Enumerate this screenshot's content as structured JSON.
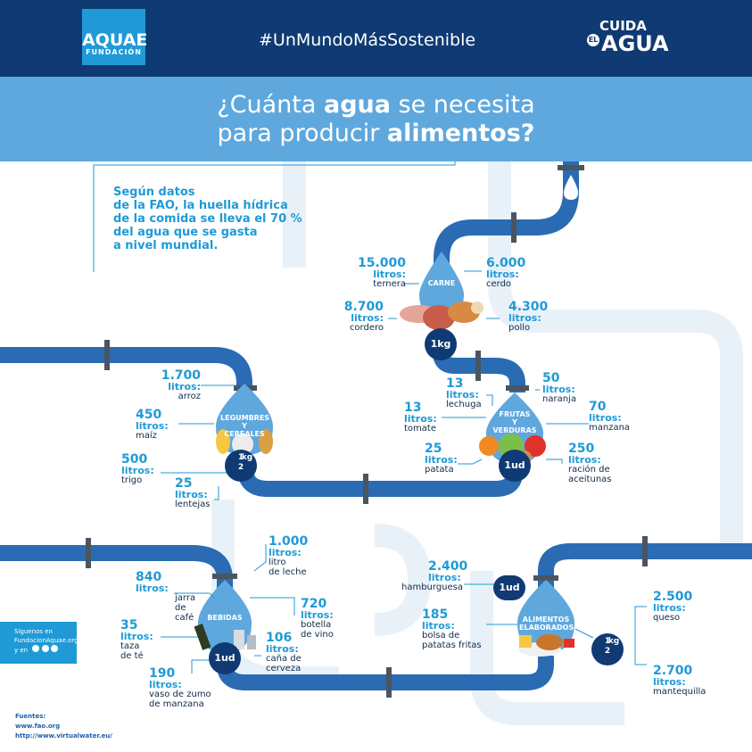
{
  "header": {
    "logo_name": "AQUAE",
    "logo_sub": "FUNDACIÓN",
    "hashtag": "#UnMundoMásSostenible",
    "campaign_l1": "CUIDA",
    "campaign_el": "EL",
    "campaign_l2": "AGUA"
  },
  "title": {
    "line1_pre": "¿Cuánta ",
    "line1_bold": "agua",
    "line1_post": " se necesita",
    "line2_pre": "para producir ",
    "line2_bold": "alimentos?"
  },
  "intro": [
    "Según datos",
    "de la FAO, la huella hídrica",
    "de la comida se lleva el 70 %",
    "del agua que se gasta",
    "a nivel mundial."
  ],
  "colors": {
    "pipe": "#2a6bb3",
    "pipe_dark": "#0f3a73",
    "accent": "#1f9ad6",
    "title_band": "#5fa8de"
  },
  "groups": {
    "carne": {
      "name": "CARNE",
      "qty": "1kg",
      "items": [
        {
          "value": "15.000",
          "unit": "litros:",
          "name": "ternera"
        },
        {
          "value": "6.000",
          "unit": "litros:",
          "name": "cerdo"
        },
        {
          "value": "8.700",
          "unit": "litros:",
          "name": "cordero"
        },
        {
          "value": "4.300",
          "unit": "litros:",
          "name": "pollo"
        }
      ]
    },
    "frutas": {
      "name_l1": "FRUTAS",
      "name_l2": "Y",
      "name_l3": "VERDURAS",
      "qty": "1ud",
      "items": [
        {
          "value": "13",
          "unit": "litros:",
          "name": "lechuga"
        },
        {
          "value": "50",
          "unit": "litros:",
          "name": "naranja"
        },
        {
          "value": "13",
          "unit": "litros:",
          "name": "tomate"
        },
        {
          "value": "70",
          "unit": "litros:",
          "name": "manzana"
        },
        {
          "value": "25",
          "unit": "litros:",
          "name": "patata"
        },
        {
          "value": "250",
          "unit": "litros:",
          "name": "ración de",
          "name2": "aceitunas"
        }
      ]
    },
    "legumbres": {
      "name_l1": "LEGUMBRES",
      "name_l2": "Y",
      "name_l3": "CEREALES",
      "qty_n": "1",
      "qty_d": "2",
      "qty_u": "kg",
      "items": [
        {
          "value": "1.700",
          "unit": "litros:",
          "name": "arroz"
        },
        {
          "value": "450",
          "unit": "litros:",
          "name": "maíz"
        },
        {
          "value": "500",
          "unit": "litros:",
          "name": "trigo"
        },
        {
          "value": "25",
          "unit": "litros:",
          "name": "lentejas"
        }
      ]
    },
    "bebidas": {
      "name": "BEBIDAS",
      "qty": "1ud",
      "items": [
        {
          "value": "1.000",
          "unit": "litros:",
          "name": "litro",
          "name2": "de leche"
        },
        {
          "value": "840",
          "unit": "litros:",
          "name": "jarra",
          "name2": "de café"
        },
        {
          "value": "720",
          "unit": "litros:",
          "name": "botella",
          "name2": "de vino"
        },
        {
          "value": "35",
          "unit": "litros:",
          "name": "taza",
          "name2": "de té"
        },
        {
          "value": "106",
          "unit": "litros:",
          "name": "caña de",
          "name2": "cerveza"
        },
        {
          "value": "190",
          "unit": "litros:",
          "name": "vaso de zumo",
          "name2": "de manzana"
        }
      ]
    },
    "elaborados": {
      "name_l1": "ALIMENTOS",
      "name_l2": "ELABORADOS",
      "qty": "1ud",
      "qty_n": "1",
      "qty_d": "2",
      "qty_u": "kg",
      "items": [
        {
          "value": "2.400",
          "unit": "litros:",
          "name": "hamburguesa"
        },
        {
          "value": "185",
          "unit": "litros:",
          "name": "bolsa de",
          "name2": "patatas fritas"
        },
        {
          "value": "2.500",
          "unit": "litros:",
          "name": "queso"
        },
        {
          "value": "2.700",
          "unit": "litros:",
          "name": "mantequilla"
        }
      ]
    }
  },
  "follow": {
    "l1": "Síguenos en",
    "l2": "FundacionAquae.org",
    "l3": "y en"
  },
  "sources": {
    "label": "Fuentes:",
    "s1": "www.fao.org",
    "s2": "http://www.virtualwater.eu/"
  }
}
